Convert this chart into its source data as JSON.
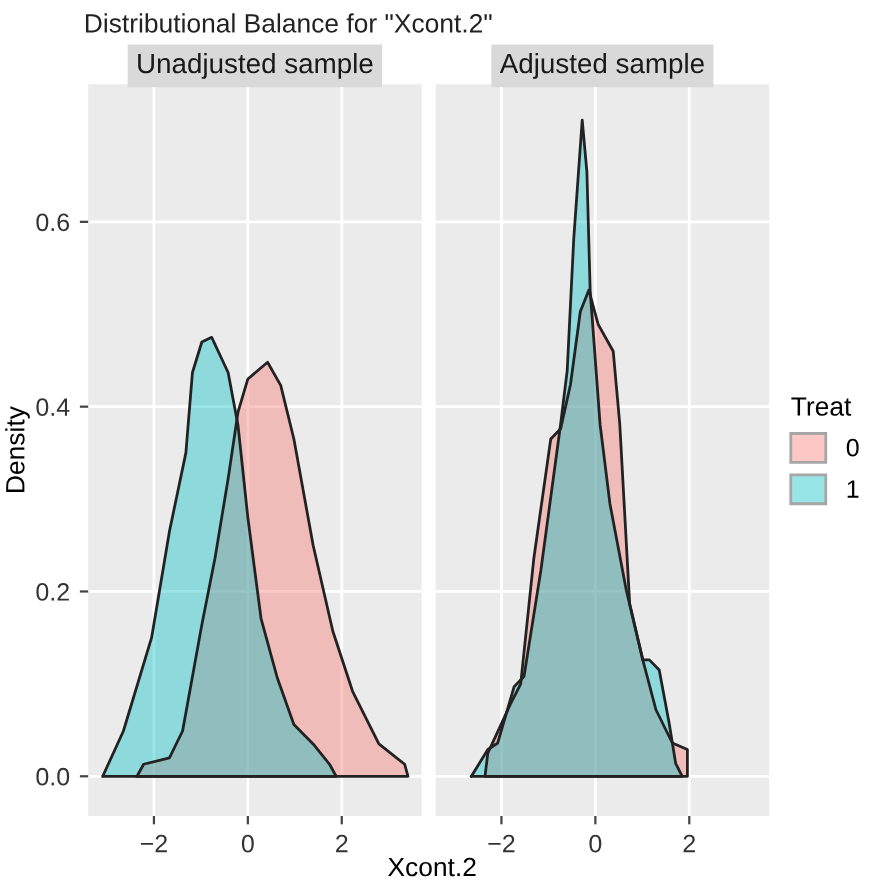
{
  "chart_data": [
    {
      "type": "area",
      "title": "Unadjusted sample",
      "xlabel": "Xcont.2",
      "ylabel": "Density",
      "annotations": [
        "Distributional Balance for \"Xcont.2\""
      ],
      "xlim": [
        -3.4,
        3.7
      ],
      "ylim": [
        -0.043,
        0.749
      ],
      "xticks": [
        {
          "value": -2,
          "label": "−2"
        },
        0,
        2
      ],
      "yticks": [
        {
          "value": 0,
          "label": "0.0"
        },
        0.2,
        0.4,
        0.6
      ],
      "grid": true,
      "series": [
        {
          "color": "#f8766d",
          "x": [
            -2.36,
            -2.22,
            -1.67,
            -1.39,
            -0.98,
            -0.7,
            -0.42,
            -0.21,
            0,
            0.42,
            0.7,
            0.98,
            1.39,
            1.81,
            2.23,
            2.79,
            3.34,
            3.41
          ],
          "values": [
            0,
            0.013,
            0.02,
            0.049,
            0.164,
            0.236,
            0.322,
            0.394,
            0.43,
            0.448,
            0.423,
            0.365,
            0.25,
            0.157,
            0.092,
            0.035,
            0.013,
            0
          ]
        },
        {
          "color": "#00bfc4",
          "x": [
            -3.09,
            -2.65,
            -2.05,
            -1.67,
            -1.32,
            -1.18,
            -0.98,
            -0.77,
            -0.42,
            -0.21,
            0,
            0.28,
            0.63,
            0.98,
            1.39,
            1.74,
            1.88
          ],
          "values": [
            0,
            0.049,
            0.15,
            0.265,
            0.35,
            0.437,
            0.47,
            0.475,
            0.437,
            0.38,
            0.28,
            0.171,
            0.106,
            0.056,
            0.035,
            0.013,
            0
          ]
        }
      ]
    },
    {
      "type": "area",
      "title": "Adjusted sample",
      "legend_title": "Treat",
      "legend": "right",
      "tick_labels": "x",
      "xlim": [
        -3.4,
        3.7
      ],
      "ylim": [
        -0.043,
        0.749
      ],
      "xticks": [
        {
          "value": -2,
          "label": "−2"
        },
        0,
        2
      ],
      "yticks": [
        0,
        0.2,
        0.4,
        0.6
      ],
      "grid": true,
      "series": [
        {
          "name": "0",
          "color": "#f8766d",
          "x": [
            -2.35,
            -2.29,
            -1.8,
            -1.59,
            -1.31,
            -0.95,
            -0.74,
            -0.53,
            -0.32,
            -0.14,
            0.06,
            0.38,
            0.52,
            0.73,
            1.01,
            1.29,
            1.64,
            1.96,
            1.96
          ],
          "values": [
            0,
            0.025,
            0.079,
            0.1,
            0.236,
            0.365,
            0.376,
            0.424,
            0.503,
            0.526,
            0.489,
            0.46,
            0.381,
            0.187,
            0.126,
            0.072,
            0.036,
            0.029,
            0
          ]
        },
        {
          "name": "1",
          "color": "#00bfc4",
          "x": [
            -2.64,
            -2.29,
            -2.08,
            -1.73,
            -1.52,
            -1.16,
            -0.74,
            -0.6,
            -0.46,
            -0.28,
            -0.18,
            -0.11,
            0.1,
            0.31,
            0.66,
            1.01,
            1.15,
            1.36,
            1.57,
            1.71,
            1.85
          ],
          "values": [
            0,
            0.029,
            0.036,
            0.097,
            0.108,
            0.223,
            0.381,
            0.439,
            0.582,
            0.71,
            0.654,
            0.525,
            0.381,
            0.295,
            0.201,
            0.126,
            0.126,
            0.115,
            0.058,
            0.014,
            0
          ]
        }
      ]
    }
  ]
}
